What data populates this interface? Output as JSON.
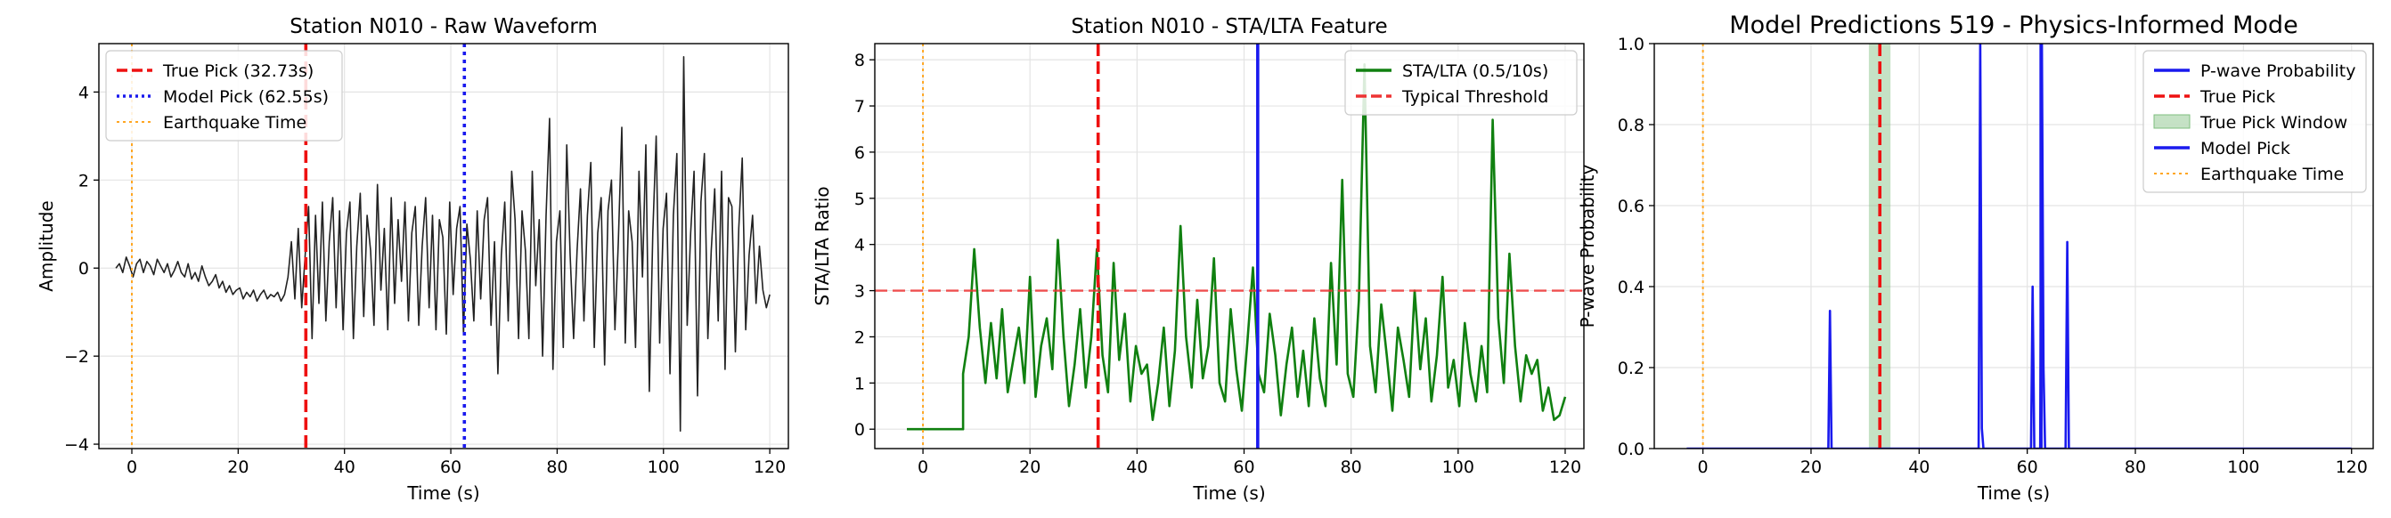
{
  "chart_data": [
    {
      "type": "line",
      "title": "Station N010 - Raw Waveform",
      "xlabel": "Time (s)",
      "ylabel": "Amplitude",
      "xlim": [
        -6.2,
        123.5
      ],
      "ylim": [
        -4.1,
        5.1
      ],
      "xticks": [
        0,
        20,
        40,
        60,
        80,
        100,
        120
      ],
      "xtick_labels": [
        "0",
        "20",
        "40",
        "60",
        "80",
        "100",
        "120"
      ],
      "yticks": [
        -4,
        -2,
        0,
        2,
        4
      ],
      "ytick_labels": [
        "−4",
        "−2",
        "0",
        "2",
        "4"
      ],
      "grid": true,
      "legend_position": "top-left",
      "series": [
        {
          "name": "",
          "color": "#222222",
          "x_start": -3,
          "x_end": 120,
          "values": [
            0.0,
            0.1,
            -0.1,
            0.25,
            0.05,
            -0.2,
            0.1,
            0.2,
            -0.1,
            0.15,
            0.05,
            -0.15,
            0.2,
            0.05,
            -0.1,
            0.1,
            -0.2,
            -0.05,
            0.15,
            -0.1,
            -0.2,
            0.1,
            -0.25,
            -0.1,
            -0.3,
            0.05,
            -0.2,
            -0.4,
            -0.3,
            -0.15,
            -0.45,
            -0.3,
            -0.55,
            -0.4,
            -0.6,
            -0.5,
            -0.45,
            -0.7,
            -0.55,
            -0.65,
            -0.5,
            -0.75,
            -0.6,
            -0.5,
            -0.7,
            -0.6,
            -0.65,
            -0.55,
            -0.75,
            -0.6,
            -0.2,
            0.6,
            -0.7,
            0.9,
            -0.9,
            0.3,
            1.4,
            -1.6,
            1.2,
            -0.8,
            1.5,
            -1.2,
            0.6,
            1.6,
            -0.9,
            1.3,
            -1.4,
            0.8,
            1.5,
            -1.6,
            0.5,
            1.7,
            -1.1,
            1.2,
            0.4,
            -1.3,
            1.9,
            -0.5,
            0.9,
            -1.4,
            1.6,
            -0.8,
            1.1,
            -0.3,
            1.5,
            -1.2,
            0.8,
            1.4,
            -1.3,
            0.5,
            1.6,
            -0.9,
            1.2,
            -1.4,
            1.1,
            0.7,
            -1.5,
            1.5,
            -0.6,
            0.9,
            1.4,
            -1.5,
            1.0,
            0.2,
            -1.2,
            1.3,
            -0.7,
            1.1,
            1.6,
            -1.3,
            0.6,
            -2.4,
            0.3,
            1.5,
            -1.2,
            2.2,
            1.1,
            -1.6,
            1.3,
            0.4,
            -1.6,
            2.2,
            -0.4,
            1.1,
            -2.0,
            1.2,
            3.4,
            -2.3,
            0.6,
            1.3,
            -1.8,
            2.8,
            0.3,
            -1.6,
            0.4,
            1.8,
            -1.2,
            1.2,
            2.4,
            -1.8,
            0.8,
            1.6,
            -2.2,
            1.3,
            2.0,
            -1.4,
            0.6,
            3.2,
            -1.7,
            1.3,
            0.6,
            -1.8,
            2.2,
            -0.2,
            2.8,
            -2.8,
            0.8,
            3.0,
            -1.7,
            0.9,
            1.7,
            -2.4,
            1.2,
            2.6,
            -3.7,
            4.8,
            -1.3,
            0.8,
            2.2,
            -2.9,
            1.5,
            2.6,
            -1.6,
            0.4,
            1.8,
            -1.2,
            2.2,
            -2.3,
            1.6,
            1.4,
            -1.9,
            0.9,
            2.5,
            -1.4,
            0.3,
            1.2,
            -0.8,
            0.5,
            -0.5,
            -0.9,
            -0.6
          ]
        }
      ],
      "vlines": [
        {
          "name": "True Pick (32.73s)",
          "x": 32.73,
          "color": "#ee1111",
          "style": "dashed"
        },
        {
          "name": "Model Pick (62.55s)",
          "x": 62.55,
          "color": "#1a1aee",
          "style": "dotted"
        },
        {
          "name": "Earthquake Time",
          "x": 0,
          "color": "#ffa622",
          "style": "dotted"
        }
      ],
      "legend": [
        {
          "label": "True Pick (32.73s)",
          "color": "#ee1111",
          "style": "dashed"
        },
        {
          "label": "Model Pick (62.55s)",
          "color": "#1a1aee",
          "style": "dotted"
        },
        {
          "label": "Earthquake Time",
          "color": "#ffa622",
          "style": "dotted"
        }
      ]
    },
    {
      "type": "line",
      "title": "Station N010 - STA/LTA Feature",
      "xlabel": "Time (s)",
      "ylabel": "STA/LTA Ratio",
      "xlim": [
        -9,
        123.5
      ],
      "ylim": [
        -0.42,
        8.35
      ],
      "xticks": [
        0,
        20,
        40,
        60,
        80,
        100,
        120
      ],
      "xtick_labels": [
        "0",
        "20",
        "40",
        "60",
        "80",
        "100",
        "120"
      ],
      "yticks": [
        0,
        1,
        2,
        3,
        4,
        5,
        6,
        7,
        8
      ],
      "ytick_labels": [
        "0",
        "1",
        "2",
        "3",
        "4",
        "5",
        "6",
        "7",
        "8"
      ],
      "grid": true,
      "legend_position": "top-right",
      "series": [
        {
          "name": "STA/LTA (0.5/10s)",
          "color": "#108010",
          "x_start": 7.5,
          "x_end": 120,
          "values": [
            1.2,
            2.0,
            3.9,
            2.2,
            1.0,
            2.3,
            1.1,
            2.6,
            0.8,
            1.5,
            2.2,
            1.0,
            3.3,
            0.7,
            1.8,
            2.4,
            1.3,
            4.1,
            2.0,
            0.5,
            1.4,
            2.6,
            0.9,
            2.0,
            3.9,
            1.6,
            0.8,
            3.6,
            1.5,
            2.5,
            0.6,
            1.8,
            1.2,
            1.4,
            0.2,
            1.0,
            2.2,
            0.5,
            1.7,
            4.4,
            2.0,
            0.9,
            2.8,
            1.1,
            1.8,
            3.7,
            1.0,
            0.6,
            2.6,
            1.3,
            0.4,
            1.9,
            3.5,
            1.2,
            0.8,
            2.5,
            1.6,
            0.3,
            1.4,
            2.2,
            0.7,
            1.7,
            0.5,
            2.4,
            1.1,
            0.5,
            3.6,
            1.4,
            5.4,
            1.2,
            0.7,
            2.8,
            7.9,
            1.8,
            0.8,
            2.7,
            1.6,
            0.4,
            2.2,
            1.5,
            0.7,
            3.0,
            1.3,
            2.4,
            0.6,
            1.6,
            3.3,
            0.9,
            1.5,
            0.5,
            2.3,
            1.2,
            0.6,
            1.8,
            0.8,
            6.7,
            2.4,
            1.0,
            3.8,
            1.8,
            0.6,
            1.6,
            1.2,
            1.5,
            0.4,
            0.9,
            0.2,
            0.3,
            0.7
          ],
          "flat_before": {
            "from": -3,
            "to": 7.5,
            "value": 0
          }
        },
        {
          "name": "Typical Threshold",
          "color": "#ee3333",
          "style": "dashed",
          "hline": 3
        }
      ],
      "vlines": [
        {
          "x": 32.73,
          "color": "#ee1111",
          "style": "dashed"
        },
        {
          "x": 62.55,
          "color": "#1a1aee",
          "style": "solid"
        },
        {
          "x": 0,
          "color": "#ffa622",
          "style": "dotted"
        }
      ],
      "legend": [
        {
          "label": "STA/LTA (0.5/10s)",
          "color": "#108010",
          "style": "solid"
        },
        {
          "label": "Typical Threshold",
          "color": "#ee3333",
          "style": "dashed"
        }
      ]
    },
    {
      "type": "line",
      "title": "Model Predictions 519 - Physics-Informed Mode",
      "xlabel": "Time (s)",
      "ylabel": "P-wave Probability",
      "xlim": [
        -9,
        124
      ],
      "ylim": [
        0,
        1
      ],
      "xticks": [
        0,
        20,
        40,
        60,
        80,
        100,
        120
      ],
      "xtick_labels": [
        "0",
        "20",
        "40",
        "60",
        "80",
        "100",
        "120"
      ],
      "yticks": [
        0,
        0.2,
        0.4,
        0.6,
        0.8,
        1.0
      ],
      "ytick_labels": [
        "0.0",
        "0.2",
        "0.4",
        "0.6",
        "0.8",
        "1.0"
      ],
      "grid": true,
      "legend_position": "top-right",
      "series": [
        {
          "name": "P-wave Probability",
          "color": "#1a1aee",
          "points": [
            [
              -3,
              0
            ],
            [
              23.2,
              0
            ],
            [
              23.5,
              0.34
            ],
            [
              23.8,
              0
            ],
            [
              51.0,
              0
            ],
            [
              51.3,
              1.0
            ],
            [
              51.6,
              0.05
            ],
            [
              51.9,
              0
            ],
            [
              60.7,
              0
            ],
            [
              61.0,
              0.4
            ],
            [
              61.3,
              0
            ],
            [
              62.4,
              0
            ],
            [
              62.7,
              1.0
            ],
            [
              63.0,
              0.2
            ],
            [
              63.3,
              0
            ],
            [
              67.1,
              0
            ],
            [
              67.4,
              0.51
            ],
            [
              67.7,
              0
            ],
            [
              120,
              0
            ]
          ]
        }
      ],
      "true_pick_window": {
        "x_from": 30.7,
        "x_to": 34.7,
        "color": "#7fbf7f"
      },
      "vlines": [
        {
          "name": "True Pick",
          "x": 32.73,
          "color": "#ee1111",
          "style": "dashed"
        },
        {
          "name": "Model Pick",
          "x": 62.55,
          "color": "#1a1aee",
          "style": "solid"
        },
        {
          "name": "Earthquake Time",
          "x": 0,
          "color": "#ffa622",
          "style": "dotted"
        }
      ],
      "legend": [
        {
          "label": "P-wave Probability",
          "color": "#1a1aee",
          "style": "solid"
        },
        {
          "label": "True Pick",
          "color": "#ee1111",
          "style": "dashed"
        },
        {
          "label": "True Pick Window",
          "color": "#7fbf7f",
          "style": "patch"
        },
        {
          "label": "Model Pick",
          "color": "#1a1aee",
          "style": "solid"
        },
        {
          "label": "Earthquake Time",
          "color": "#ffa622",
          "style": "dotted"
        }
      ]
    }
  ]
}
